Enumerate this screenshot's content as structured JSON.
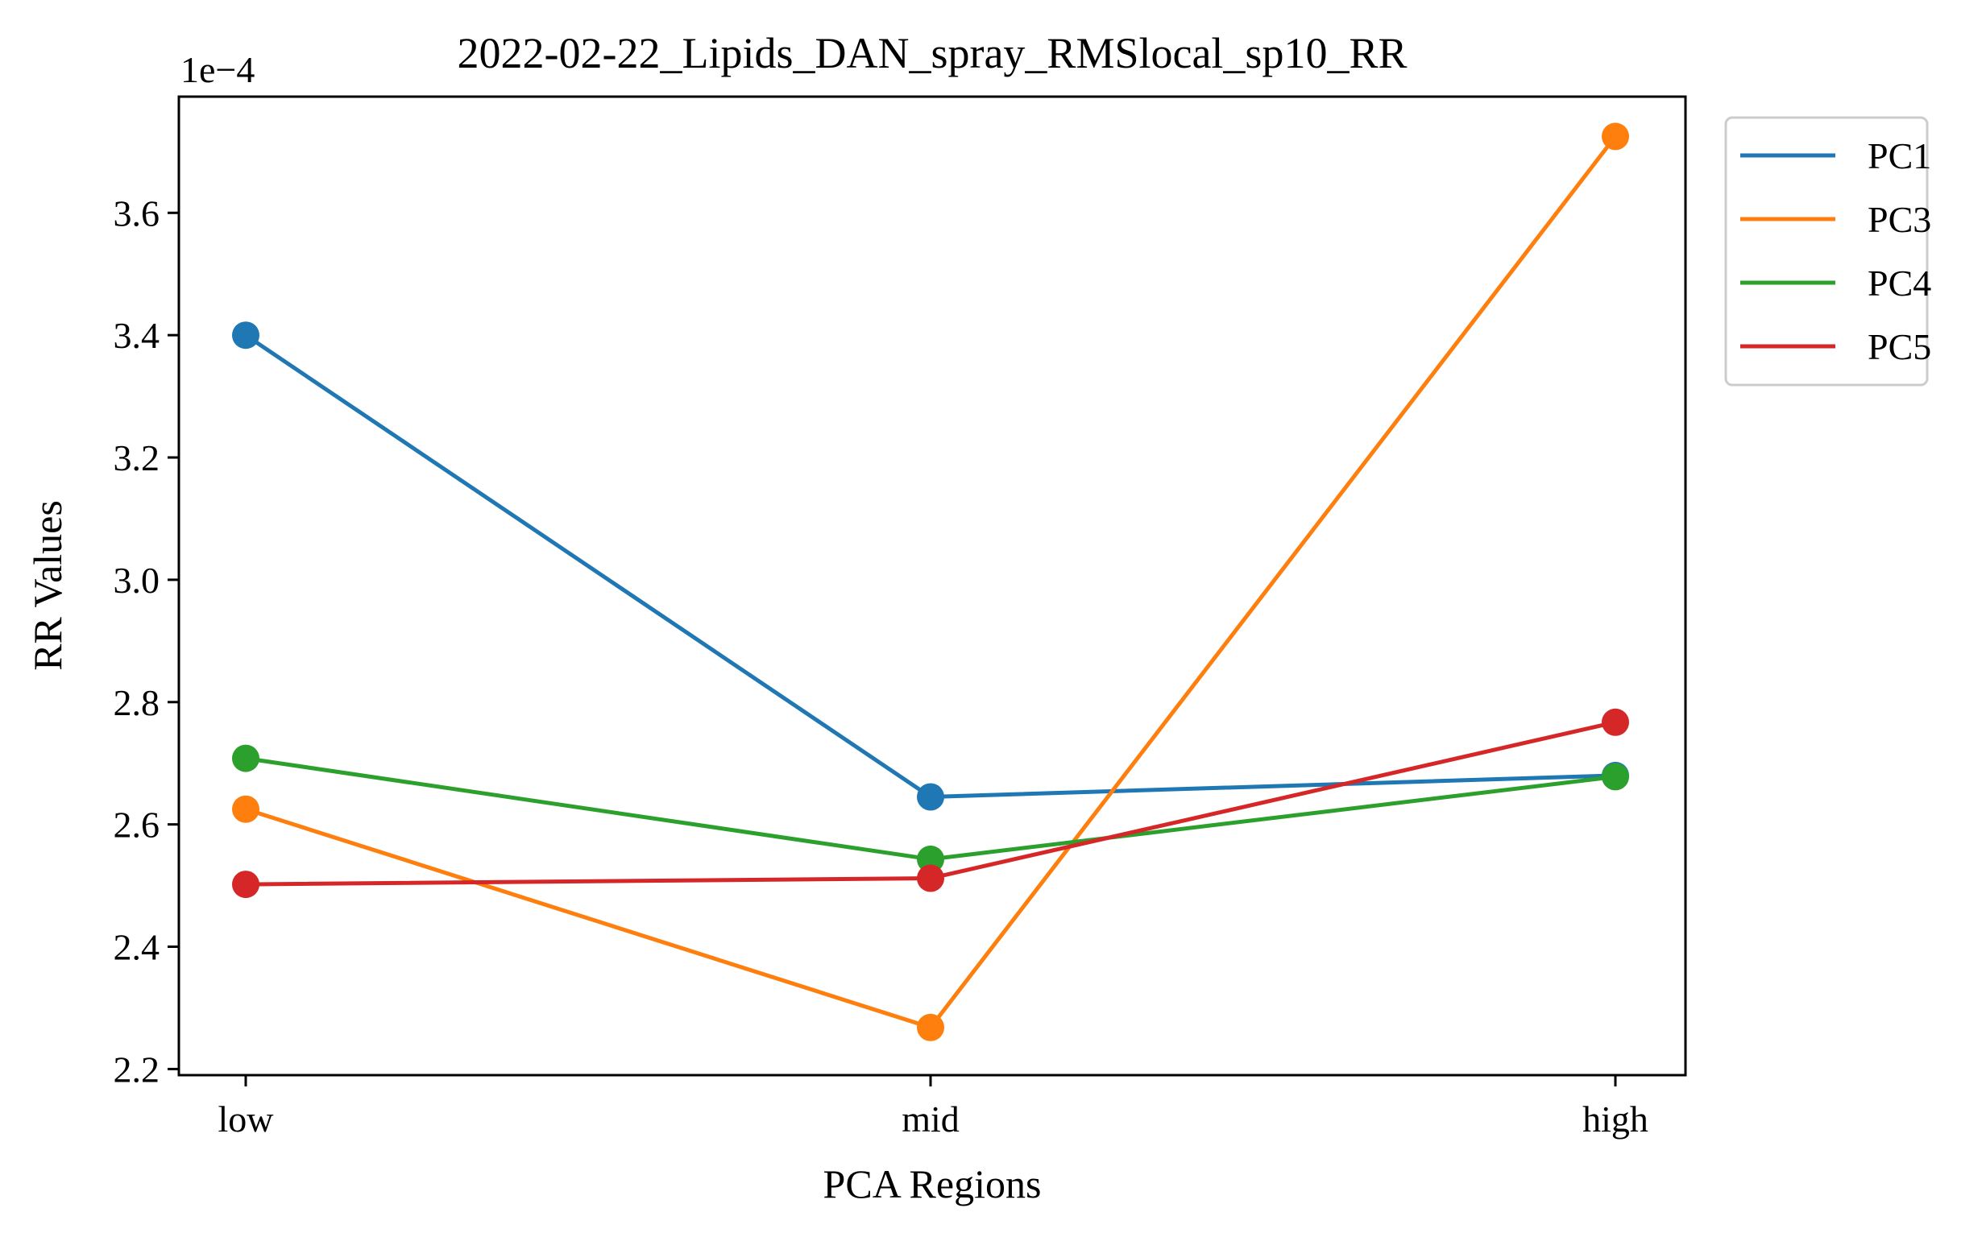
{
  "chart_data": {
    "type": "line",
    "title": "2022-02-22_Lipids_DAN_spray_RMSlocal_sp10_RR",
    "xlabel": "PCA Regions",
    "ylabel": "RR Values",
    "y_offset_label": "1e−4",
    "y_scale_exponent": -4,
    "categories": [
      "low",
      "mid",
      "high"
    ],
    "ylim": [
      2.19,
      3.79
    ],
    "yticks": [
      2.2,
      2.4,
      2.6,
      2.8,
      3.0,
      3.2,
      3.4,
      3.6
    ],
    "ytick_labels": [
      "2.2",
      "2.4",
      "2.6",
      "2.8",
      "3.0",
      "3.2",
      "3.4",
      "3.6"
    ],
    "grid": false,
    "legend_position": "outside-top-right",
    "markers": true,
    "series": [
      {
        "name": "PC1",
        "color": "#1f77b4",
        "values": [
          3.4,
          2.645,
          2.68
        ]
      },
      {
        "name": "PC3",
        "color": "#ff7f0e",
        "values": [
          2.625,
          2.268,
          3.725
        ]
      },
      {
        "name": "PC4",
        "color": "#2ca02c",
        "values": [
          2.708,
          2.543,
          2.678
        ]
      },
      {
        "name": "PC5",
        "color": "#d62728",
        "values": [
          2.502,
          2.512,
          2.767
        ]
      }
    ]
  }
}
